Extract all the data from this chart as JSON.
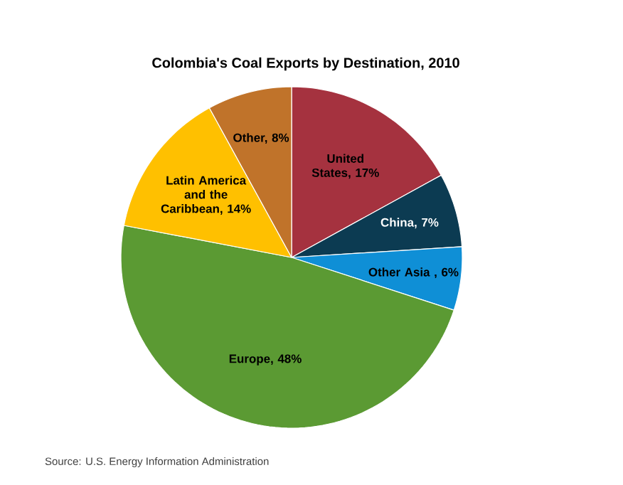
{
  "chart_data": {
    "type": "pie",
    "title": "Colombia's Coal Exports by Destination, 2010",
    "categories": [
      "United States, 17%",
      "China, 7%",
      "Other Asia , 6%",
      "Europe, 48%",
      "Latin America and the Caribbean, 14%",
      "Other, 8%"
    ],
    "values": [
      17,
      7,
      6,
      48,
      14,
      8
    ],
    "colors": [
      "#a5323f",
      "#0c3b52",
      "#0f8fd6",
      "#5b9a33",
      "#ffc000",
      "#c0732a"
    ],
    "annotations": [
      "Source:  U.S. Energy Information Administration"
    ]
  }
}
